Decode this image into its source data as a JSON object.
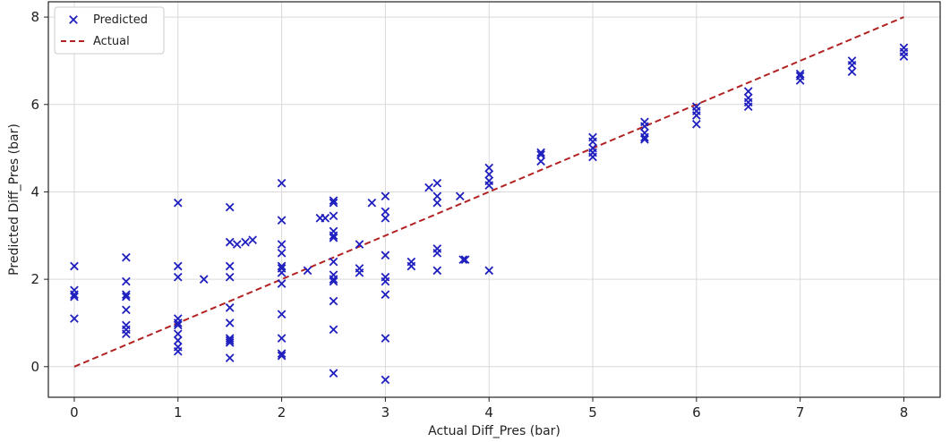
{
  "chart_data": {
    "type": "scatter",
    "xlabel": "Actual Diff_Pres (bar)",
    "ylabel": "Predicted Diff_Pres (bar)",
    "xlim": [
      -0.25,
      8.35
    ],
    "ylim": [
      -0.7,
      8.35
    ],
    "xticks": [
      0,
      1,
      2,
      3,
      4,
      5,
      6,
      7,
      8
    ],
    "yticks": [
      0,
      2,
      4,
      6,
      8
    ],
    "grid": true,
    "legend_position": "top-left",
    "series": [
      {
        "name": "Predicted",
        "marker": "x",
        "color": "#1f1fbf",
        "points": [
          [
            0,
            2.3
          ],
          [
            0,
            1.75
          ],
          [
            0,
            1.65
          ],
          [
            0,
            1.6
          ],
          [
            0,
            1.1
          ],
          [
            0.5,
            2.5
          ],
          [
            0.5,
            1.95
          ],
          [
            0.5,
            1.65
          ],
          [
            0.5,
            1.6
          ],
          [
            0.5,
            1.3
          ],
          [
            0.5,
            0.95
          ],
          [
            0.5,
            0.85
          ],
          [
            0.5,
            0.75
          ],
          [
            1,
            3.75
          ],
          [
            1,
            2.3
          ],
          [
            1,
            2.05
          ],
          [
            1,
            1.1
          ],
          [
            1,
            1.0
          ],
          [
            1,
            0.95
          ],
          [
            1,
            0.75
          ],
          [
            1,
            0.6
          ],
          [
            1,
            0.45
          ],
          [
            1,
            0.35
          ],
          [
            1.25,
            2.0
          ],
          [
            1.5,
            3.65
          ],
          [
            1.5,
            2.85
          ],
          [
            1.5,
            2.3
          ],
          [
            1.5,
            2.05
          ],
          [
            1.5,
            1.35
          ],
          [
            1.5,
            1.0
          ],
          [
            1.5,
            0.65
          ],
          [
            1.5,
            0.6
          ],
          [
            1.5,
            0.55
          ],
          [
            1.5,
            0.2
          ],
          [
            1.57,
            2.8
          ],
          [
            1.65,
            2.85
          ],
          [
            1.72,
            2.9
          ],
          [
            2,
            4.2
          ],
          [
            2,
            3.35
          ],
          [
            2,
            2.8
          ],
          [
            2,
            2.6
          ],
          [
            2,
            2.3
          ],
          [
            2,
            2.25
          ],
          [
            2,
            2.15
          ],
          [
            2,
            1.9
          ],
          [
            2,
            1.2
          ],
          [
            2,
            0.65
          ],
          [
            2,
            0.3
          ],
          [
            2,
            0.25
          ],
          [
            2.25,
            2.2
          ],
          [
            2.37,
            3.4
          ],
          [
            2.42,
            3.4
          ],
          [
            2.5,
            3.8
          ],
          [
            2.5,
            3.75
          ],
          [
            2.5,
            3.45
          ],
          [
            2.5,
            3.1
          ],
          [
            2.5,
            3.0
          ],
          [
            2.5,
            2.95
          ],
          [
            2.5,
            2.4
          ],
          [
            2.5,
            2.1
          ],
          [
            2.5,
            2.0
          ],
          [
            2.5,
            1.95
          ],
          [
            2.5,
            1.5
          ],
          [
            2.5,
            0.85
          ],
          [
            2.5,
            -0.15
          ],
          [
            2.75,
            2.8
          ],
          [
            2.75,
            2.25
          ],
          [
            2.75,
            2.15
          ],
          [
            2.87,
            3.75
          ],
          [
            3,
            3.9
          ],
          [
            3,
            3.55
          ],
          [
            3,
            3.4
          ],
          [
            3,
            2.55
          ],
          [
            3,
            2.05
          ],
          [
            3,
            1.95
          ],
          [
            3,
            1.65
          ],
          [
            3,
            0.65
          ],
          [
            3,
            -0.3
          ],
          [
            3.25,
            2.4
          ],
          [
            3.25,
            2.3
          ],
          [
            3.42,
            4.1
          ],
          [
            3.5,
            4.2
          ],
          [
            3.5,
            3.9
          ],
          [
            3.5,
            3.75
          ],
          [
            3.5,
            2.7
          ],
          [
            3.5,
            2.6
          ],
          [
            3.5,
            2.2
          ],
          [
            3.72,
            3.9
          ],
          [
            3.75,
            2.45
          ],
          [
            3.77,
            2.45
          ],
          [
            4,
            4.55
          ],
          [
            4,
            4.4
          ],
          [
            4,
            4.25
          ],
          [
            4,
            4.15
          ],
          [
            4,
            2.2
          ],
          [
            4.5,
            4.9
          ],
          [
            4.5,
            4.85
          ],
          [
            4.5,
            4.7
          ],
          [
            5,
            5.25
          ],
          [
            5,
            5.15
          ],
          [
            5,
            5.0
          ],
          [
            5,
            4.9
          ],
          [
            5,
            4.8
          ],
          [
            5.5,
            5.6
          ],
          [
            5.5,
            5.5
          ],
          [
            5.5,
            5.35
          ],
          [
            5.5,
            5.25
          ],
          [
            5.5,
            5.2
          ],
          [
            6,
            5.95
          ],
          [
            6,
            5.85
          ],
          [
            6,
            5.75
          ],
          [
            6,
            5.55
          ],
          [
            6.5,
            6.3
          ],
          [
            6.5,
            6.15
          ],
          [
            6.5,
            6.05
          ],
          [
            6.5,
            5.95
          ],
          [
            7,
            6.7
          ],
          [
            7,
            6.65
          ],
          [
            7,
            6.55
          ],
          [
            7.5,
            7.0
          ],
          [
            7.5,
            6.9
          ],
          [
            7.5,
            6.75
          ],
          [
            8,
            7.3
          ],
          [
            8,
            7.2
          ],
          [
            8,
            7.1
          ]
        ]
      },
      {
        "name": "Actual",
        "style": "dashed-line",
        "color": "#b22222",
        "points": [
          [
            0,
            0
          ],
          [
            8,
            8
          ]
        ]
      }
    ]
  }
}
